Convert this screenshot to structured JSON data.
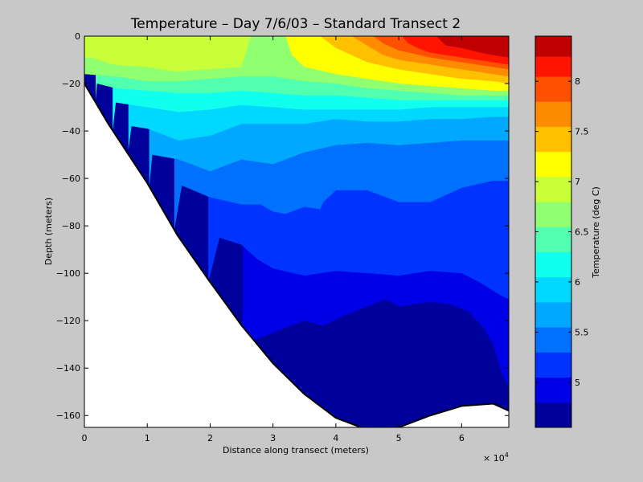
{
  "chart_data": {
    "type": "heatmap",
    "subtype": "filled-contour",
    "title": "Temperature – Day 7/6/03 – Standard Transect 2",
    "xlabel": "Distance along transect (meters)",
    "ylabel": "Depth (meters)",
    "x_multiplier_label": "× 10",
    "x_multiplier_exponent": "4",
    "xlim": [
      0,
      67500
    ],
    "ylim": [
      -165,
      0
    ],
    "xticks": [
      0,
      10000,
      20000,
      30000,
      40000,
      50000,
      60000
    ],
    "xtick_labels": [
      "0",
      "1",
      "2",
      "3",
      "4",
      "5",
      "6"
    ],
    "yticks": [
      0,
      -20,
      -40,
      -60,
      -80,
      -100,
      -120,
      -140,
      -160
    ],
    "ytick_labels": [
      "0",
      "−20",
      "−40",
      "−60",
      "−80",
      "−100",
      "−120",
      "−140",
      "−160"
    ],
    "colorbar": {
      "label": "Temperature (deg C)",
      "range": [
        4.55,
        8.45
      ],
      "levels": [
        4.55,
        4.8,
        5.05,
        5.3,
        5.55,
        5.8,
        6.05,
        6.3,
        6.55,
        6.8,
        7.05,
        7.3,
        7.55,
        7.8,
        8.05,
        8.25,
        8.45
      ],
      "colors": [
        "#00009a",
        "#0000e6",
        "#0033ff",
        "#0070ff",
        "#00a8ff",
        "#00d8ff",
        "#10ffef",
        "#50ffaf",
        "#90ff70",
        "#c8ff38",
        "#ffff00",
        "#ffc000",
        "#ff8c00",
        "#ff5000",
        "#ff1400",
        "#c00000"
      ],
      "ticks": [
        5,
        5.5,
        6,
        6.5,
        7,
        7.5,
        8
      ],
      "tick_labels": [
        "5",
        "5.5",
        "6",
        "6.5",
        "7",
        "7.5",
        "8"
      ]
    },
    "seafloor_profile": {
      "x": [
        0,
        3800,
        10000,
        14800,
        19800,
        25000,
        30000,
        35000,
        40000,
        45000,
        50000,
        55000,
        60000,
        65000,
        67500
      ],
      "y": [
        -20,
        -37,
        -62,
        -84,
        -103,
        -122,
        -138,
        -151,
        -161,
        -166,
        -165,
        -160,
        -156,
        -155,
        -158
      ]
    },
    "isotherms": [
      {
        "level": 4.8,
        "x": [
          25200,
          30000,
          35000,
          38000,
          42000,
          46000,
          48000,
          50000,
          55000,
          58000,
          61000,
          63500,
          65000,
          66500,
          67500
        ],
        "y": [
          -130,
          -125,
          -120,
          -122,
          -117,
          -113,
          -111,
          -114,
          -112,
          -113,
          -116,
          -123,
          -130,
          -143,
          -148
        ]
      },
      {
        "level": 5.05,
        "x": [
          19700,
          21500,
          25000,
          27500,
          30000,
          35000,
          40000,
          45000,
          50000,
          55000,
          60000,
          63000,
          66000,
          67500
        ],
        "y": [
          -104,
          -85,
          -88,
          -94,
          -98,
          -101,
          -99,
          -100,
          -101,
          -99,
          -100,
          -104,
          -109,
          -111
        ]
      },
      {
        "level": 5.3,
        "x": [
          14300,
          15500,
          20000,
          25000,
          28000,
          30000,
          32000,
          35000,
          37500,
          38000,
          40000,
          45000,
          50000,
          55000,
          60000,
          65000,
          67500
        ],
        "y": [
          -82,
          -63,
          -68,
          -71,
          -71,
          -74,
          -75,
          -72,
          -73,
          -70,
          -65,
          -65,
          -70,
          -70,
          -64,
          -61,
          -61
        ]
      },
      {
        "level": 5.55,
        "x": [
          10300,
          10800,
          15000,
          20000,
          25000,
          30000,
          35000,
          40000,
          45000,
          50000,
          55000,
          60000,
          65000,
          67500
        ],
        "y": [
          -64,
          -50,
          -52,
          -57,
          -52,
          -54,
          -49,
          -46,
          -45,
          -46,
          -45,
          -44,
          -44,
          -44
        ]
      },
      {
        "level": 5.8,
        "x": [
          7000,
          7500,
          10000,
          12000,
          15000,
          20000,
          25000,
          30000,
          35000,
          40000,
          45000,
          50000,
          55000,
          60000,
          65000,
          67500
        ],
        "y": [
          -48,
          -38,
          -39,
          -41,
          -44,
          -42,
          -37,
          -37,
          -37,
          -35,
          -36,
          -36,
          -35,
          -35,
          -34,
          -34
        ]
      },
      {
        "level": 6.05,
        "x": [
          4500,
          5000,
          10000,
          15000,
          20000,
          25000,
          30000,
          35000,
          40000,
          45000,
          50000,
          55000,
          60000,
          65000,
          67500
        ],
        "y": [
          -40,
          -28,
          -30,
          -32,
          -31,
          -29,
          -30,
          -31,
          -31,
          -31,
          -31,
          -30,
          -30,
          -30,
          -30
        ]
      },
      {
        "level": 6.3,
        "x": [
          1800,
          2000,
          5000,
          10000,
          15000,
          20000,
          25000,
          30000,
          35000,
          40000,
          45000,
          50000,
          55000,
          60000,
          65000,
          67500
        ],
        "y": [
          -27,
          -20,
          -22,
          -23,
          -24,
          -24,
          -23,
          -24,
          -25,
          -25,
          -26,
          -27,
          -27,
          -27,
          -27,
          -27
        ]
      },
      {
        "level": 6.55,
        "x": [
          0,
          5000,
          10000,
          15000,
          20000,
          25000,
          30000,
          35000,
          40000,
          45000,
          50000,
          55000,
          60000,
          65000,
          67500
        ],
        "y": [
          -16,
          -17,
          -19,
          -19,
          -18,
          -17,
          -17,
          -19,
          -20,
          -22,
          -23,
          -24,
          -25,
          -25,
          -25
        ]
      },
      {
        "level": 6.8,
        "x": [
          0,
          4500,
          10000,
          14500,
          19500,
          25000,
          26500
        ],
        "y": [
          -8,
          -12,
          -13,
          -15,
          -14,
          -13,
          0
        ]
      },
      {
        "level": 7.05,
        "x": [
          32000,
          33000,
          35000,
          40000,
          45000,
          50000,
          55000,
          60000,
          65000,
          67500
        ],
        "y": [
          0,
          -8,
          -13,
          -16,
          -18,
          -20,
          -21,
          -22,
          -23,
          -23
        ]
      },
      {
        "level": 7.3,
        "x": [
          37500,
          40000,
          42500,
          45000,
          50000,
          55000,
          60000,
          65000,
          67500
        ],
        "y": [
          0,
          -5,
          -8,
          -11,
          -14,
          -16,
          -18,
          -19,
          -20
        ]
      },
      {
        "level": 7.55,
        "x": [
          42500,
          45000,
          47500,
          50000,
          55000,
          60000,
          65000,
          67500
        ],
        "y": [
          0,
          -4,
          -8,
          -10,
          -12,
          -14,
          -16,
          -17
        ]
      },
      {
        "level": 7.8,
        "x": [
          46000,
          47500,
          50000,
          55000,
          60000,
          65000,
          67500
        ],
        "y": [
          0,
          -3,
          -6,
          -9,
          -11,
          -13,
          -14
        ]
      },
      {
        "level": 8.05,
        "x": [
          50500,
          51500,
          53000,
          55000,
          60000,
          65000,
          67500
        ],
        "y": [
          0,
          -3,
          -5,
          -7,
          -9,
          -11,
          -12
        ]
      },
      {
        "level": 8.25,
        "x": [
          56000,
          57500,
          60000,
          63000,
          65000,
          67500
        ],
        "y": [
          0,
          -4,
          -5,
          -7,
          -8,
          -9
        ]
      }
    ],
    "warm_patches": [
      {
        "level": 6.8,
        "x": [
          0,
          3700,
          4300,
          3700,
          1500,
          0
        ],
        "y": [
          0,
          0,
          -4,
          -7,
          -9,
          -9
        ]
      }
    ]
  }
}
